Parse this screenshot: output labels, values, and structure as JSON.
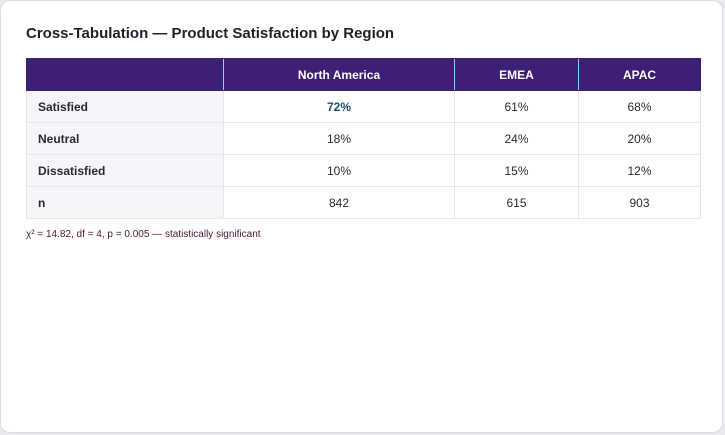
{
  "title": "Cross-Tabulation — Product Satisfaction by Region",
  "table": {
    "corner": "",
    "columns": [
      "North America",
      "EMEA",
      "APAC"
    ],
    "rows": [
      {
        "label": "Satisfied",
        "cells": [
          "72%",
          "61%",
          "68%"
        ]
      },
      {
        "label": "Neutral",
        "cells": [
          "18%",
          "24%",
          "20%"
        ]
      },
      {
        "label": "Dissatisfied",
        "cells": [
          "10%",
          "15%",
          "12%"
        ]
      },
      {
        "label": "n",
        "cells": [
          "842",
          "615",
          "903"
        ]
      }
    ],
    "highlight_cell": {
      "row": "Satisfied",
      "column": "North America",
      "color": "#1b4f72"
    }
  },
  "footnote": "χ² = 14.82, df = 4, p = 0.005 — statistically significant",
  "colors": {
    "header_bg": "#3e1f76",
    "header_divider": "#8fd2e3",
    "row_label_bg": "#f5f5fa",
    "footnote_text": "#4a1a3a"
  }
}
